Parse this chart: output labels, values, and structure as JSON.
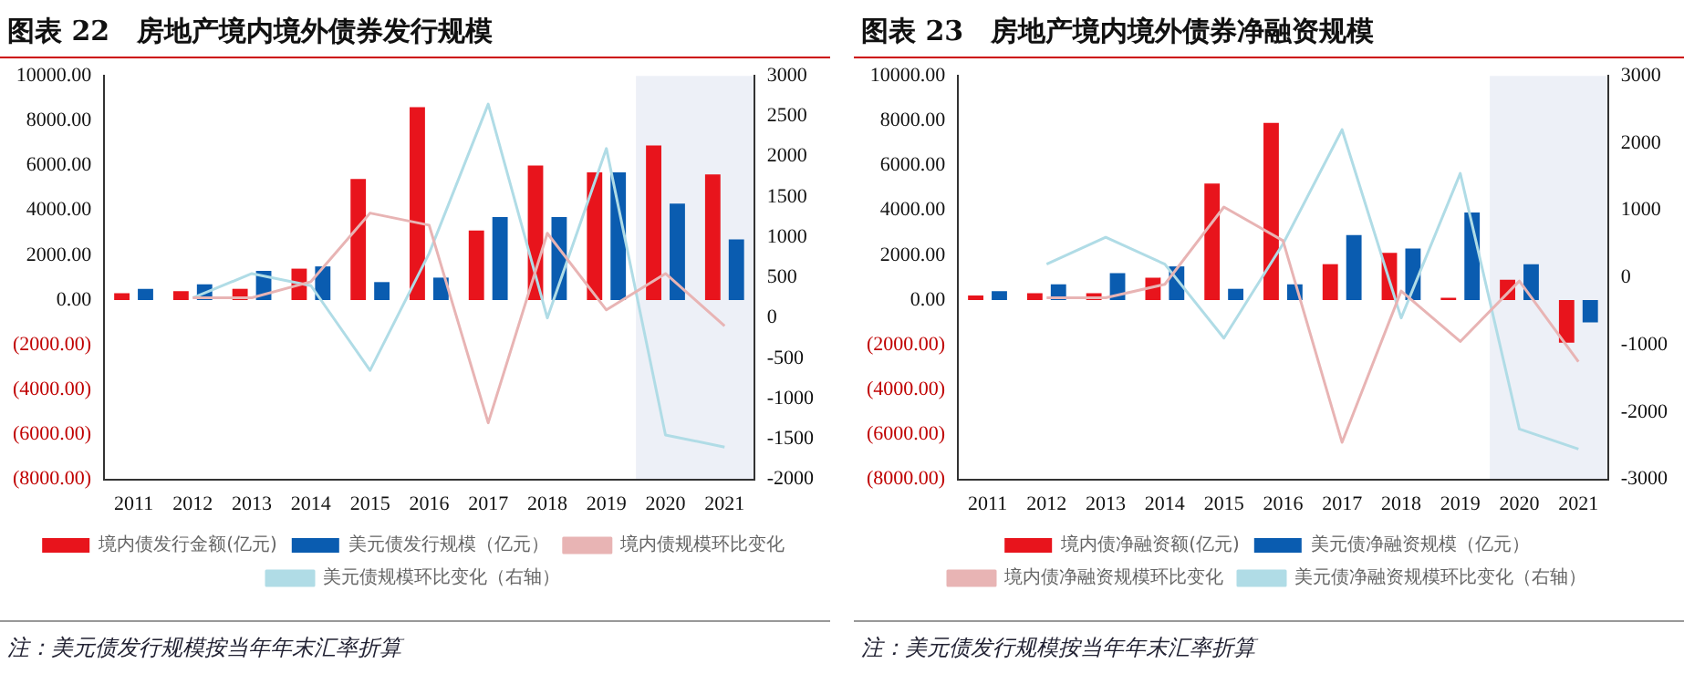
{
  "chart_data": [
    {
      "type": "bar",
      "title": "图表 22　房地产境内境外债券发行规模",
      "categories": [
        "2011",
        "2012",
        "2013",
        "2014",
        "2015",
        "2016",
        "2017",
        "2018",
        "2019",
        "2020",
        "2021"
      ],
      "series": [
        {
          "name": "境内债发行金额(亿元)",
          "color": "#e8141c",
          "values": [
            300,
            400,
            500,
            1400,
            5400,
            8600,
            3100,
            6000,
            5700,
            6900,
            5600
          ]
        },
        {
          "name": "美元债发行规模（亿元）",
          "color": "#0a5cb0",
          "values": [
            500,
            700,
            1300,
            1500,
            800,
            1000,
            3700,
            3700,
            5700,
            4300,
            2700
          ]
        },
        {
          "name": "境内债规模环比变化",
          "type": "line",
          "axis": "y2",
          "color": "#e8b4b4",
          "values": [
            null,
            250,
            250,
            450,
            1300,
            1150,
            -1300,
            1050,
            100,
            550,
            -100
          ]
        },
        {
          "name": "美元债规模环比变化（右轴）",
          "type": "line",
          "axis": "y2",
          "color": "#b0dce6",
          "values": [
            null,
            250,
            550,
            400,
            -650,
            800,
            2650,
            0,
            2100,
            -1450,
            -1600
          ]
        }
      ],
      "ylim": [
        -8000,
        10000
      ],
      "yticks": [
        {
          "value": -8000,
          "label": "(8000.00)"
        },
        {
          "value": -6000,
          "label": "(6000.00)"
        },
        {
          "value": -4000,
          "label": "(4000.00)"
        },
        {
          "value": -2000,
          "label": "(2000.00)"
        },
        {
          "value": 0,
          "label": "0.00"
        },
        {
          "value": 2000,
          "label": "2000.00"
        },
        {
          "value": 4000,
          "label": "4000.00"
        },
        {
          "value": 6000,
          "label": "6000.00"
        },
        {
          "value": 8000,
          "label": "8000.00"
        },
        {
          "value": 10000,
          "label": "10000.00"
        }
      ],
      "y2lim": [
        -2000,
        3000
      ],
      "y2ticks": [
        -2000,
        -1500,
        -1000,
        -500,
        0,
        500,
        1000,
        1500,
        2000,
        2500,
        3000
      ],
      "bands": [
        {
          "axis": "x",
          "from": "2020",
          "to": "2021",
          "color": "#edf0f7"
        }
      ],
      "legend": "bottom",
      "marker": "none",
      "annotations": [
        "注：美元债发行规模按当年年末汇率折算"
      ]
    },
    {
      "type": "bar",
      "title": "图表 23　房地产境内境外债券净融资规模",
      "categories": [
        "2011",
        "2012",
        "2013",
        "2014",
        "2015",
        "2016",
        "2017",
        "2018",
        "2019",
        "2020",
        "2021"
      ],
      "series": [
        {
          "name": "境内债净融资额(亿元)",
          "color": "#e8141c",
          "values": [
            200,
            300,
            300,
            1000,
            5200,
            7900,
            1600,
            2100,
            100,
            900,
            -1900
          ]
        },
        {
          "name": "美元债净融资规模（亿元）",
          "color": "#0a5cb0",
          "values": [
            400,
            700,
            1200,
            1500,
            500,
            700,
            2900,
            2300,
            3900,
            1600,
            -1000
          ]
        },
        {
          "name": "境内债净融资规模环比变化",
          "type": "line",
          "axis": "y2",
          "color": "#e8b4b4",
          "values": [
            null,
            -300,
            -300,
            -100,
            1050,
            550,
            -2450,
            -200,
            -950,
            -50,
            -1250
          ]
        },
        {
          "name": "美元债净融资规模环比变化（右轴）",
          "type": "line",
          "axis": "y2",
          "color": "#b0dce6",
          "values": [
            null,
            200,
            600,
            200,
            -900,
            500,
            2200,
            -600,
            1550,
            -2250,
            -2550
          ]
        }
      ],
      "ylim": [
        -8000,
        10000
      ],
      "yticks": [
        {
          "value": -8000,
          "label": "(8000.00)"
        },
        {
          "value": -6000,
          "label": "(6000.00)"
        },
        {
          "value": -4000,
          "label": "(4000.00)"
        },
        {
          "value": -2000,
          "label": "(2000.00)"
        },
        {
          "value": 0,
          "label": "0.00"
        },
        {
          "value": 2000,
          "label": "2000.00"
        },
        {
          "value": 4000,
          "label": "4000.00"
        },
        {
          "value": 6000,
          "label": "6000.00"
        },
        {
          "value": 8000,
          "label": "8000.00"
        },
        {
          "value": 10000,
          "label": "10000.00"
        }
      ],
      "y2lim": [
        -3000,
        3000
      ],
      "y2ticks": [
        -3000,
        -2000,
        -1000,
        0,
        1000,
        2000,
        3000
      ],
      "bands": [
        {
          "axis": "x",
          "from": "2020",
          "to": "2021",
          "color": "#edf0f7"
        }
      ],
      "legend": "bottom",
      "marker": "none",
      "annotations": [
        "注：美元债发行规模按当年年末汇率折算"
      ]
    }
  ]
}
